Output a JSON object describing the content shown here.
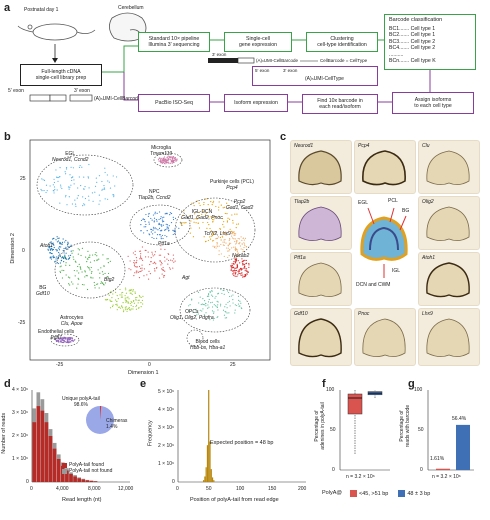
{
  "panels": {
    "a": "a",
    "b": "b",
    "c": "c",
    "d": "d",
    "e": "e",
    "f": "f",
    "g": "g"
  },
  "a": {
    "postnatal": "Postnatal day 1",
    "cerebellum": "Cerebellum",
    "library_prep": "Full-length cDNA\nsingle-cell library prep",
    "exon5": "5′ exon",
    "exon3": "3′ exon",
    "tail": "(A)ₙUMI-CellBarcode",
    "pipeline": "Standard 10× pipeline\nIllumina 3′ sequencing",
    "gene_expr": "Single-cell\ngene expression",
    "clustering": "Clustering\ncell-type identification",
    "barcode_class_title": "Barcode classification",
    "barcodes": [
      "BC1....... Cell type 1",
      "BC2....... Cell type 1",
      "BC3....... Cell type 2",
      "BC4....... Cell type 2",
      "..........",
      "BCn....... Cell type K"
    ],
    "small_read_exon": "3′ exon",
    "small_read_tail": "(A)ₙUMI-CellBarcode",
    "small_read_result": "CellBarcode = CellType",
    "celltype_read_exon5": "5′ exon",
    "celltype_read_exon3": "3′ exon",
    "celltype_tail": "(A)ₙUMI-CellType",
    "pacbio": "PacBio ISO-Seq",
    "isoform_expr": "Isoform expression",
    "find_barcode": "Find 10x barcode in\neach read/isoform",
    "assign": "Assign isoforms\nto each cell type"
  },
  "b": {
    "xlabel": "Dimension 1",
    "ylabel": "Dimension 2",
    "xticks": [
      "-25",
      "0",
      "25"
    ],
    "yticks": [
      "-25",
      "0",
      "25"
    ],
    "clusters": [
      {
        "name": "EGL",
        "genes": "Neurod1, Ccnd2"
      },
      {
        "name": "Microglia",
        "genes": "Tmem119"
      },
      {
        "name": "Purkinje cells (PCL)",
        "genes": "Pcp4"
      },
      {
        "name": "NPC",
        "genes": "Tlap2b, Ccnd2"
      },
      {
        "name": "IGL-DCN",
        "genes": "Gad1, Gad2, Pnoc"
      },
      {
        "name": "",
        "genes": "Pcp2\nGad1, Gad2"
      },
      {
        "name": "",
        "genes": "Ptf1a"
      },
      {
        "name": "",
        "genes": "Tcf7l2, Lhx9"
      },
      {
        "name": "",
        "genes": "Atoh1"
      },
      {
        "name": "",
        "genes": "Agt"
      },
      {
        "name": "",
        "genes": "Necab2"
      },
      {
        "name": "BG",
        "genes": "Gdf10"
      },
      {
        "name": "",
        "genes": "Btg2"
      },
      {
        "name": "Astrocytes",
        "genes": "Clu, Apoe"
      },
      {
        "name": "OPCs",
        "genes": "Olig1, Olig2, Pdgfra"
      },
      {
        "name": "Endothelial cells",
        "genes": "Egfl7"
      },
      {
        "name": "Blood cells",
        "genes": "Hbb-bs, Hba-a1"
      }
    ]
  },
  "c": {
    "genes": [
      "Neurod1",
      "Pcp4",
      "Clu",
      "Tlap2b",
      "Olig2",
      "Ptf1a",
      "Atoh1",
      "Gdf10",
      "Pnoc",
      "Lhx9"
    ],
    "diagram_labels": {
      "egl": "EGL",
      "pcl": "PCL",
      "bg": "BG",
      "igl": "IGL",
      "dcn": "DCN and CWM"
    }
  },
  "d": {
    "ylabel": "Number of reads",
    "xlabel": "Read length (nt)",
    "yticks": [
      "0",
      "1 × 10⁶",
      "2 × 10⁶",
      "3 × 10⁶",
      "4 × 10⁶"
    ],
    "xticks": [
      "0",
      "4,000",
      "8,000",
      "12,000"
    ],
    "unique_label": "Unique polyA-tail",
    "unique_pct": "98.6%",
    "chimera_label": "Chimeras",
    "chimera_pct": "1.4%",
    "legend": [
      {
        "name": "PolyA-tail found",
        "color": "#b52b27"
      },
      {
        "name": "PolyA-tail not found",
        "color": "#9a9a9a"
      }
    ]
  },
  "e": {
    "ylabel": "Frequency",
    "xlabel": "Position of polyA-tail from read edge",
    "yticks": [
      "0",
      "1 × 10⁶",
      "2 × 10⁶",
      "3 × 10⁶",
      "4 × 10⁶",
      "5 × 10⁶"
    ],
    "xticks": [
      "0",
      "50",
      "100",
      "150",
      "200"
    ],
    "annotation": "Expected position = 48 bp"
  },
  "f": {
    "ylabel": "Percentage of\nadenines in polyA-tail",
    "yticks": [
      "0",
      "50",
      "100"
    ],
    "n": "n = 3.2 × 10⁶",
    "legend_title": "PolyA@",
    "legend": [
      {
        "name": "<45, >51 bp",
        "color": "#d9534f"
      },
      {
        "name": "48 ± 3 bp",
        "color": "#3f6fb5"
      }
    ]
  },
  "g": {
    "ylabel": "Percentage of\nreads with barcode",
    "yticks": [
      "0",
      "50",
      "100"
    ],
    "n": "n = 3.2 × 10⁶",
    "bar1_label": "1.61%",
    "bar2_label": "56.4%"
  },
  "chart_data": [
    {
      "type": "bar",
      "panel": "d",
      "title": "",
      "xlabel": "Read length (nt)",
      "ylabel": "Number of reads",
      "x": [
        500,
        1000,
        1500,
        2000,
        2500,
        3000,
        3500,
        4000,
        4500,
        5000,
        5500,
        6000,
        6500,
        7000,
        7500,
        8000
      ],
      "series": [
        {
          "name": "PolyA-tail not found",
          "values": [
            3200000.0,
            3900000.0,
            3600000.0,
            3000000.0,
            2300000.0,
            1700000.0,
            1200000.0,
            850000.0,
            600000.0,
            420000.0,
            300000.0,
            200000.0,
            140000.0,
            90000.0,
            60000.0,
            40000.0
          ]
        },
        {
          "name": "PolyA-tail found",
          "values": [
            2600000.0,
            3300000.0,
            3100000.0,
            2600000.0,
            2000000.0,
            1450000.0,
            1000000.0,
            700000.0,
            500000.0,
            350000.0,
            240000.0,
            160000.0,
            110000.0,
            70000.0,
            50000.0,
            30000.0
          ]
        }
      ],
      "ylim": [
        0,
        4000000
      ],
      "xlim": [
        0,
        12000
      ]
    },
    {
      "type": "pie",
      "panel": "d-inset",
      "labels": [
        "Unique polyA-tail",
        "Chimeras"
      ],
      "values": [
        98.6,
        1.4
      ]
    },
    {
      "type": "bar",
      "panel": "e",
      "title": "",
      "xlabel": "Position of polyA-tail from read edge",
      "ylabel": "Frequency",
      "x": [
        40,
        42,
        44,
        46,
        48,
        50,
        52,
        54,
        56
      ],
      "values": [
        100000.0,
        300000.0,
        800000.0,
        2000000.0,
        5000000.0,
        2200000.0,
        700000.0,
        250000.0,
        100000.0
      ],
      "xlim": [
        0,
        200
      ],
      "ylim": [
        0,
        5000000
      ]
    },
    {
      "type": "box",
      "panel": "f",
      "ylabel": "Percentage of adenines in polyA-tail",
      "series": [
        {
          "name": "<45, >51 bp",
          "q1": 70,
          "median": 90,
          "q3": 95,
          "min": 20,
          "max": 100
        },
        {
          "name": "48 ± 3 bp",
          "q1": 94,
          "median": 96,
          "q3": 98,
          "min": 90,
          "max": 100
        }
      ],
      "ylim": [
        0,
        100
      ]
    },
    {
      "type": "bar",
      "panel": "g",
      "ylabel": "Percentage of reads with barcode",
      "categories": [
        "<45, >51 bp",
        "48 ± 3 bp"
      ],
      "values": [
        1.61,
        56.4
      ],
      "ylim": [
        0,
        100
      ]
    }
  ]
}
